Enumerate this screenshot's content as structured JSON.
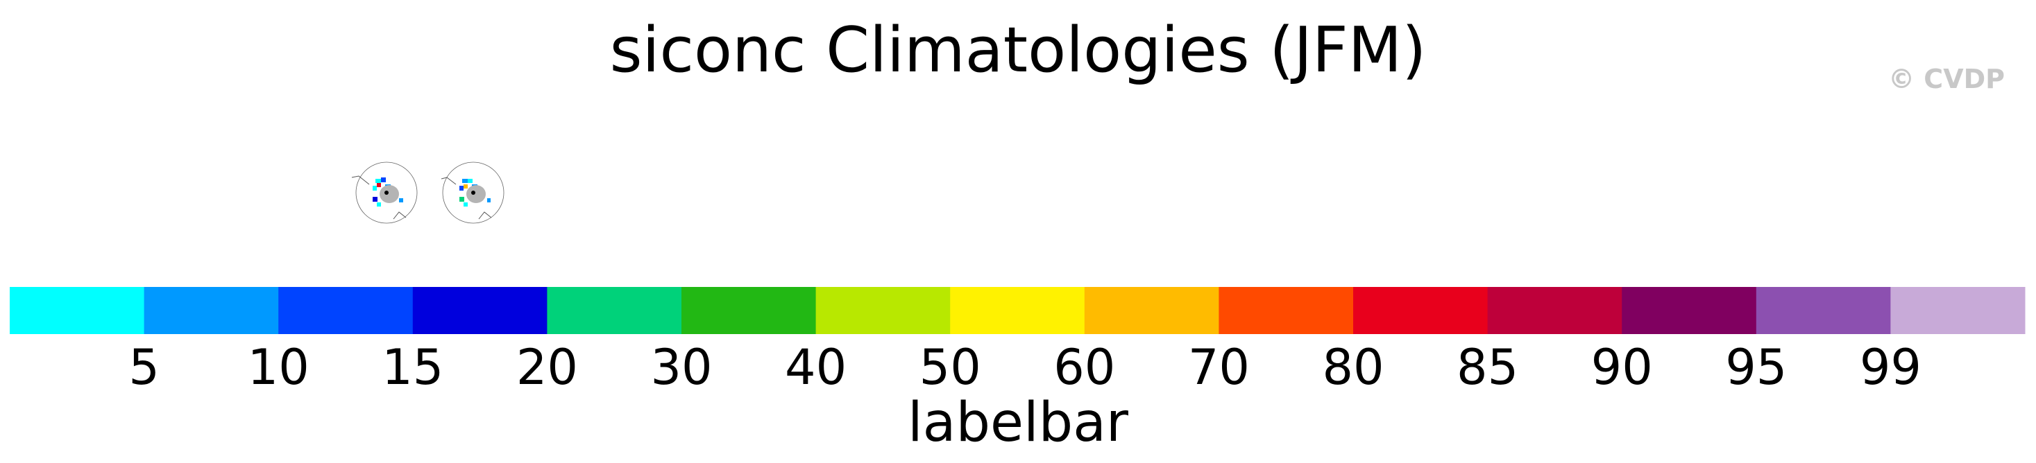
{
  "title": "siconc Climatologies (JFM)",
  "watermark": "© CVDP",
  "panels": [
    {
      "title": ""
    },
    {
      "title": ""
    }
  ],
  "chart_data": {
    "type": "heatmap",
    "title": "siconc Climatologies (JFM)",
    "colorbar": {
      "label": "labelbar",
      "boundaries": [
        "5",
        "10",
        "15",
        "20",
        "30",
        "40",
        "50",
        "60",
        "70",
        "80",
        "85",
        "90",
        "95",
        "99"
      ],
      "colors": [
        "#00ffff",
        "#0099ff",
        "#0044ff",
        "#0000dd",
        "#00d27a",
        "#22b814",
        "#b8e800",
        "#fff200",
        "#ffbb00",
        "#ff4a00",
        "#e8001c",
        "#be003a",
        "#800060",
        "#8c50b0",
        "#c8aad8"
      ]
    },
    "panels": 2
  }
}
